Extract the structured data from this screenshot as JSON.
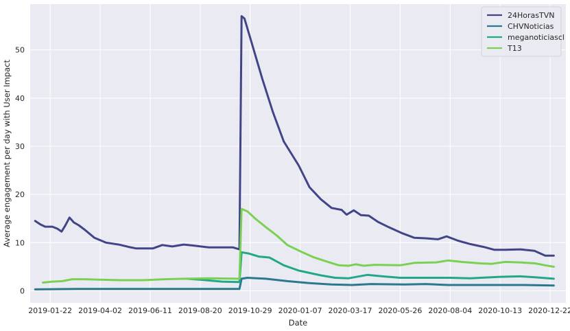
{
  "chart_data": {
    "type": "line",
    "xlabel": "Date",
    "ylabel": "Average engagement per day with User Impact",
    "x_ticks": [
      "2019-01-22",
      "2019-04-02",
      "2019-06-11",
      "2019-08-20",
      "2019-10-29",
      "2020-01-07",
      "2020-03-17",
      "2020-05-26",
      "2020-08-04",
      "2020-10-13",
      "2020-12-22"
    ],
    "y_ticks": [
      0,
      10,
      20,
      30,
      40,
      50
    ],
    "xlim": [
      "2018-12-25",
      "2021-01-13"
    ],
    "ylim": [
      -2.5,
      59.5
    ],
    "grid": true,
    "legend_position": "top-right",
    "colors": {
      "background": "#eaeaf2",
      "grid": "#ffffff"
    },
    "series": [
      {
        "name": "24HorasTVN",
        "color": "#414487",
        "points": [
          [
            "2019-01-01",
            14.5
          ],
          [
            "2019-01-08",
            13.8
          ],
          [
            "2019-01-15",
            13.3
          ],
          [
            "2019-01-25",
            13.3
          ],
          [
            "2019-02-01",
            12.9
          ],
          [
            "2019-02-07",
            12.3
          ],
          [
            "2019-02-12",
            13.5
          ],
          [
            "2019-02-18",
            15.2
          ],
          [
            "2019-02-24",
            14.2
          ],
          [
            "2019-03-03",
            13.6
          ],
          [
            "2019-03-12",
            12.6
          ],
          [
            "2019-03-25",
            11.0
          ],
          [
            "2019-04-10",
            10.0
          ],
          [
            "2019-04-28",
            9.6
          ],
          [
            "2019-05-12",
            9.1
          ],
          [
            "2019-05-22",
            8.8
          ],
          [
            "2019-06-05",
            8.8
          ],
          [
            "2019-06-15",
            8.8
          ],
          [
            "2019-06-28",
            9.5
          ],
          [
            "2019-07-12",
            9.2
          ],
          [
            "2019-07-28",
            9.6
          ],
          [
            "2019-08-10",
            9.4
          ],
          [
            "2019-09-01",
            9.0
          ],
          [
            "2019-09-20",
            9.0
          ],
          [
            "2019-10-05",
            9.0
          ],
          [
            "2019-10-14",
            8.6
          ],
          [
            "2019-10-17",
            57.0
          ],
          [
            "2019-10-21",
            56.5
          ],
          [
            "2019-10-30",
            52.0
          ],
          [
            "2019-11-15",
            44.0
          ],
          [
            "2019-11-30",
            37.0
          ],
          [
            "2019-12-15",
            31.0
          ],
          [
            "2020-01-05",
            26.0
          ],
          [
            "2020-01-20",
            21.5
          ],
          [
            "2020-02-05",
            19.0
          ],
          [
            "2020-02-20",
            17.2
          ],
          [
            "2020-03-05",
            16.8
          ],
          [
            "2020-03-12",
            15.8
          ],
          [
            "2020-03-22",
            16.7
          ],
          [
            "2020-04-01",
            15.7
          ],
          [
            "2020-04-12",
            15.6
          ],
          [
            "2020-04-25",
            14.3
          ],
          [
            "2020-05-10",
            13.2
          ],
          [
            "2020-05-28",
            12.0
          ],
          [
            "2020-06-15",
            11.0
          ],
          [
            "2020-07-01",
            10.9
          ],
          [
            "2020-07-18",
            10.7
          ],
          [
            "2020-07-30",
            11.3
          ],
          [
            "2020-08-15",
            10.4
          ],
          [
            "2020-09-01",
            9.7
          ],
          [
            "2020-09-20",
            9.1
          ],
          [
            "2020-10-05",
            8.5
          ],
          [
            "2020-10-20",
            8.5
          ],
          [
            "2020-11-10",
            8.6
          ],
          [
            "2020-11-30",
            8.3
          ],
          [
            "2020-12-15",
            7.3
          ],
          [
            "2020-12-27",
            7.3
          ]
        ]
      },
      {
        "name": "CHVNoticias",
        "color": "#2a788e",
        "points": [
          [
            "2019-01-01",
            0.3
          ],
          [
            "2019-03-01",
            0.4
          ],
          [
            "2019-06-01",
            0.4
          ],
          [
            "2019-09-01",
            0.4
          ],
          [
            "2019-10-14",
            0.4
          ],
          [
            "2019-10-17",
            2.5
          ],
          [
            "2019-10-25",
            2.7
          ],
          [
            "2019-11-20",
            2.5
          ],
          [
            "2019-12-20",
            2.0
          ],
          [
            "2020-01-20",
            1.6
          ],
          [
            "2020-02-20",
            1.3
          ],
          [
            "2020-03-20",
            1.2
          ],
          [
            "2020-04-15",
            1.4
          ],
          [
            "2020-06-01",
            1.3
          ],
          [
            "2020-07-01",
            1.4
          ],
          [
            "2020-08-01",
            1.2
          ],
          [
            "2020-09-01",
            1.2
          ],
          [
            "2020-10-15",
            1.2
          ],
          [
            "2020-11-15",
            1.2
          ],
          [
            "2020-12-27",
            1.1
          ]
        ]
      },
      {
        "name": "meganoticiascl",
        "color": "#22a884",
        "points": [
          [
            "2019-08-01",
            2.5
          ],
          [
            "2019-08-20",
            2.3
          ],
          [
            "2019-09-20",
            1.9
          ],
          [
            "2019-10-14",
            1.8
          ],
          [
            "2019-10-17",
            8.0
          ],
          [
            "2019-10-28",
            7.7
          ],
          [
            "2019-11-10",
            7.1
          ],
          [
            "2019-11-25",
            6.9
          ],
          [
            "2019-12-15",
            5.3
          ],
          [
            "2020-01-05",
            4.2
          ],
          [
            "2020-02-05",
            3.2
          ],
          [
            "2020-02-25",
            2.7
          ],
          [
            "2020-03-15",
            2.6
          ],
          [
            "2020-04-10",
            3.3
          ],
          [
            "2020-05-01",
            3.0
          ],
          [
            "2020-05-26",
            2.7
          ],
          [
            "2020-07-01",
            2.7
          ],
          [
            "2020-08-04",
            2.7
          ],
          [
            "2020-09-01",
            2.6
          ],
          [
            "2020-10-13",
            2.9
          ],
          [
            "2020-11-10",
            3.0
          ],
          [
            "2020-12-01",
            2.8
          ],
          [
            "2020-12-27",
            2.5
          ]
        ]
      },
      {
        "name": "T13",
        "color": "#7ad151",
        "points": [
          [
            "2019-01-12",
            1.7
          ],
          [
            "2019-01-25",
            1.9
          ],
          [
            "2019-02-08",
            2.0
          ],
          [
            "2019-02-22",
            2.4
          ],
          [
            "2019-03-10",
            2.4
          ],
          [
            "2019-04-01",
            2.3
          ],
          [
            "2019-05-01",
            2.2
          ],
          [
            "2019-06-01",
            2.2
          ],
          [
            "2019-07-01",
            2.4
          ],
          [
            "2019-08-01",
            2.5
          ],
          [
            "2019-09-01",
            2.6
          ],
          [
            "2019-10-14",
            2.5
          ],
          [
            "2019-10-17",
            17.0
          ],
          [
            "2019-10-25",
            16.5
          ],
          [
            "2019-11-05",
            15.0
          ],
          [
            "2019-11-20",
            13.2
          ],
          [
            "2019-12-05",
            11.5
          ],
          [
            "2019-12-20",
            9.5
          ],
          [
            "2020-01-10",
            8.0
          ],
          [
            "2020-01-25",
            7.0
          ],
          [
            "2020-02-15",
            6.0
          ],
          [
            "2020-03-01",
            5.3
          ],
          [
            "2020-03-15",
            5.2
          ],
          [
            "2020-03-25",
            5.5
          ],
          [
            "2020-04-05",
            5.2
          ],
          [
            "2020-04-20",
            5.4
          ],
          [
            "2020-05-26",
            5.3
          ],
          [
            "2020-06-15",
            5.8
          ],
          [
            "2020-07-15",
            5.9
          ],
          [
            "2020-08-01",
            6.3
          ],
          [
            "2020-08-20",
            6.0
          ],
          [
            "2020-09-15",
            5.7
          ],
          [
            "2020-10-01",
            5.6
          ],
          [
            "2020-10-20",
            6.0
          ],
          [
            "2020-11-10",
            5.9
          ],
          [
            "2020-12-01",
            5.7
          ],
          [
            "2020-12-15",
            5.3
          ],
          [
            "2020-12-27",
            5.0
          ]
        ]
      }
    ]
  }
}
